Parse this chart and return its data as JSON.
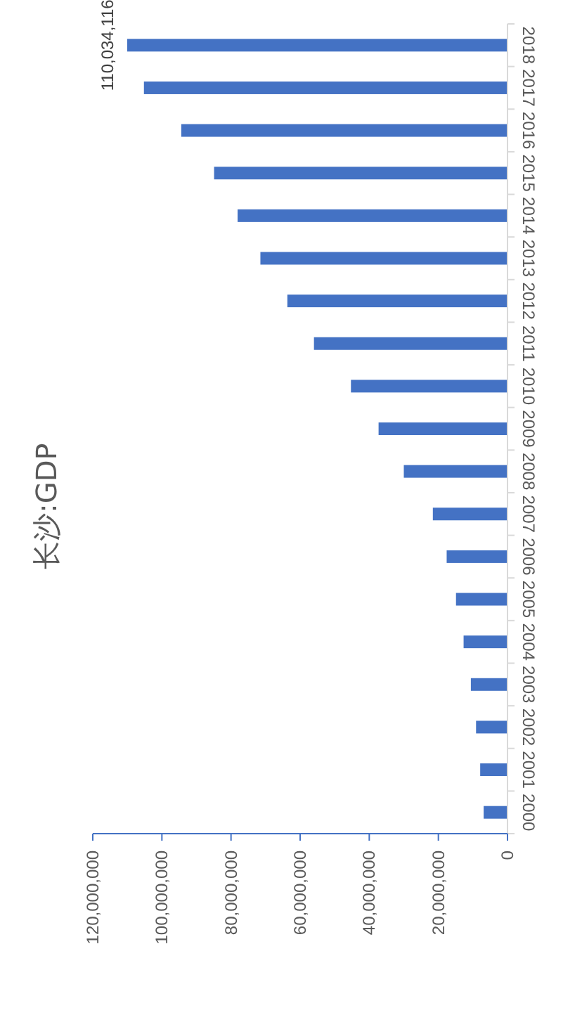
{
  "chart_data": {
    "type": "bar",
    "orientation": "horizontal",
    "title": "长沙:GDP",
    "categories": [
      "2018",
      "2017",
      "2016",
      "2015",
      "2014",
      "2013",
      "2012",
      "2011",
      "2010",
      "2009",
      "2008",
      "2007",
      "2006",
      "2005",
      "2004",
      "2003",
      "2002",
      "2001",
      "2000"
    ],
    "values": [
      110034116,
      105200000,
      94400000,
      84900000,
      78100000,
      71500000,
      63700000,
      56000000,
      45300000,
      37300000,
      30000000,
      21600000,
      17600000,
      14900000,
      12700000,
      10600000,
      9100000,
      7900000,
      6900000
    ],
    "value_labels": [
      "110,034,116",
      null,
      null,
      null,
      null,
      null,
      null,
      null,
      null,
      null,
      null,
      null,
      null,
      null,
      null,
      null,
      null,
      null,
      null
    ],
    "color": "#4472c4",
    "xlim": [
      120000000,
      0
    ],
    "xticks": [
      {
        "value": 120000000,
        "label": "120,000,000"
      },
      {
        "value": 100000000,
        "label": "100,000,000"
      },
      {
        "value": 80000000,
        "label": "80,000,000"
      },
      {
        "value": 60000000,
        "label": "60,000,000"
      },
      {
        "value": 40000000,
        "label": "40,000,000"
      },
      {
        "value": 20000000,
        "label": "20,000,000"
      },
      0
    ],
    "grid": false
  }
}
